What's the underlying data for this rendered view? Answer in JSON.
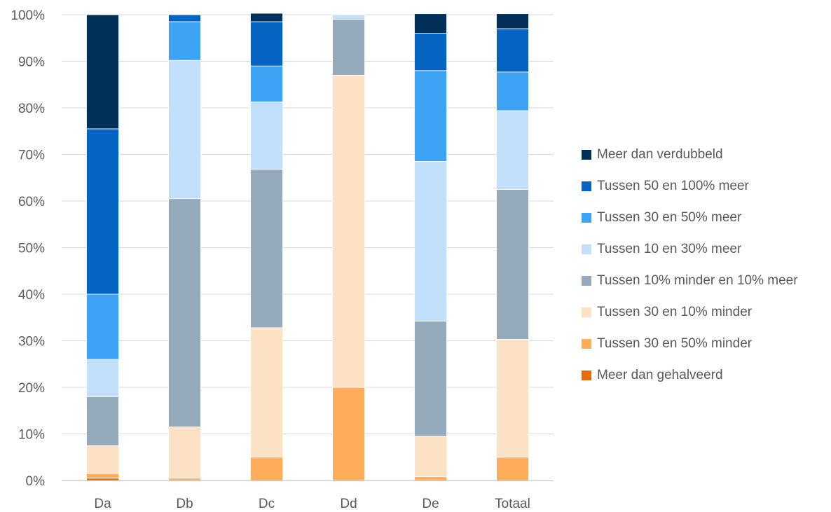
{
  "chart_data": {
    "type": "bar",
    "stacked": true,
    "percent": true,
    "title": "",
    "xlabel": "",
    "ylabel": "",
    "ylim": [
      0,
      100
    ],
    "y_ticks": [
      "0%",
      "10%",
      "20%",
      "30%",
      "40%",
      "50%",
      "60%",
      "70%",
      "80%",
      "90%",
      "100%"
    ],
    "grid": true,
    "legend_position": "right",
    "categories": [
      "Da",
      "Db",
      "Dc",
      "Dd",
      "De",
      "Totaal"
    ],
    "series": [
      {
        "name": "Meer dan gehalveerd",
        "color": "#e46c0a",
        "values": [
          0.5,
          0,
          0,
          0,
          0,
          0
        ]
      },
      {
        "name": "Tussen 30 en 50% minder",
        "color": "#ffad5b",
        "values": [
          1.0,
          0.5,
          5.0,
          20.0,
          0.8,
          5.0
        ]
      },
      {
        "name": "Tussen 30 en 10% minder",
        "color": "#fde1c5",
        "values": [
          6.0,
          11.0,
          27.8,
          67.0,
          8.7,
          25.3
        ]
      },
      {
        "name": "Tussen 10% minder en 10% meer",
        "color": "#95aabb",
        "values": [
          10.5,
          49.0,
          34.0,
          12.0,
          24.7,
          32.2
        ]
      },
      {
        "name": "Tussen 10 en 30% meer",
        "color": "#c2e0fb",
        "values": [
          8.0,
          29.7,
          14.5,
          1.0,
          34.3,
          16.9
        ]
      },
      {
        "name": "Tussen 30 en 50% meer",
        "color": "#3da3f5",
        "values": [
          14.0,
          8.3,
          7.7,
          0,
          19.5,
          8.3
        ]
      },
      {
        "name": "Tussen 50 en 100% meer",
        "color": "#0563c1",
        "values": [
          35.5,
          1.5,
          9.5,
          0,
          8.0,
          9.3
        ]
      },
      {
        "name": "Meer dan verdubbeld",
        "color": "#003058",
        "values": [
          24.5,
          0,
          1.8,
          0,
          4.2,
          3.2
        ]
      }
    ]
  },
  "colors": {
    "grid": "#d9d9d9",
    "axis": "#bfbfbf",
    "text": "#595959"
  }
}
